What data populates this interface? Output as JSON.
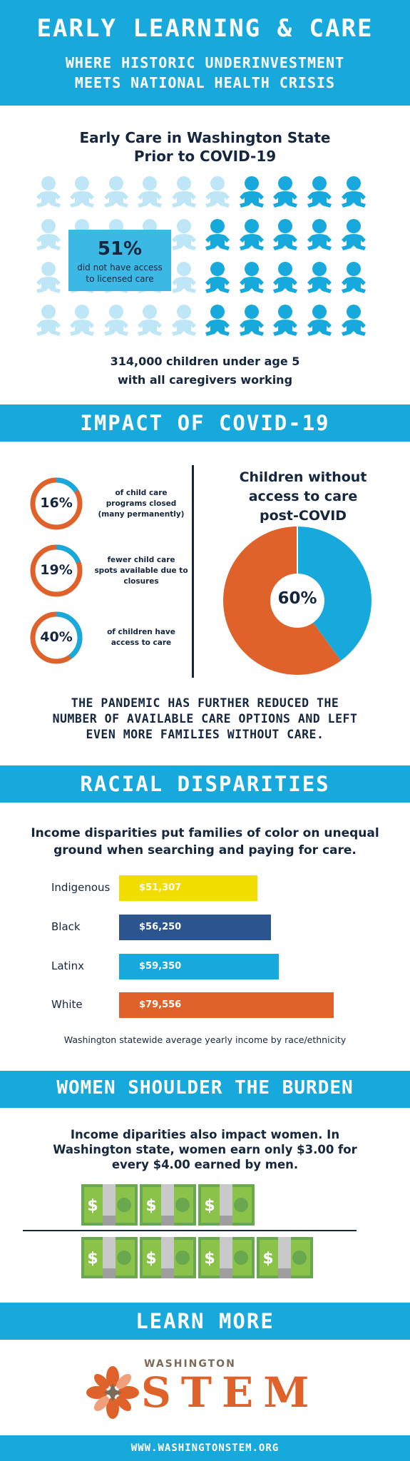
{
  "header": {
    "title": "EARLY LEARNING & CARE",
    "subtitle_line1": "WHERE HISTORIC UNDERINVESTMENT",
    "subtitle_line2": "MEETS NATIONAL HEALTH CRISIS"
  },
  "early_care": {
    "title_line1": "Early Care in Washington State",
    "title_line2": "Prior to COVID-19",
    "callout_percent": "51%",
    "callout_line1": "did not have access",
    "callout_line2": "to licensed care",
    "caption_line1": "314,000 children under age 5",
    "caption_line2": "with all caregivers working",
    "light_color": "#bfe6f6",
    "dark_color": "#18a9dc",
    "callout_color": "#3bb8e3",
    "icon": "baby-icon"
  },
  "covid": {
    "band": "IMPACT OF COVID-19",
    "stats": [
      {
        "percent": "16%",
        "fraction": 0.16,
        "line1": "of child care",
        "line2": "programs closed",
        "line3": "(many permanently)"
      },
      {
        "percent": "19%",
        "fraction": 0.19,
        "line1": "fewer child care",
        "line2": "spots available due to",
        "line3": "closures"
      },
      {
        "percent": "40%",
        "fraction": 0.4,
        "line1": "of children have",
        "line2": "access to care",
        "line3": ""
      }
    ],
    "pie_title_line1": "Children without",
    "pie_title_line2": "access to care",
    "pie_title_line3": "post-COVID",
    "pie_label": "60%",
    "pie_fraction": 0.6,
    "orange": "#e0622b",
    "blue": "#18a9dc",
    "statement_line1": "THE PANDEMIC HAS FURTHER REDUCED THE",
    "statement_line2": "NUMBER OF AVAILABLE CARE OPTIONS AND LEFT",
    "statement_line3": "EVEN MORE FAMILIES WITHOUT CARE."
  },
  "racial": {
    "band": "RACIAL DISPARITIES",
    "heading_line1": "Income disparities put families of color on unequal",
    "heading_line2": "ground when searching and paying for care.",
    "bars": [
      {
        "label": "Indigenous",
        "value": 51307,
        "display": "$51,307",
        "color": "#f2dd00"
      },
      {
        "label": "Black",
        "value": 56250,
        "display": "$56,250",
        "color": "#2c5590"
      },
      {
        "label": "Latinx",
        "value": 59350,
        "display": "$59,350",
        "color": "#18a9dc"
      },
      {
        "label": "White",
        "value": 79556,
        "display": "$79,556",
        "color": "#e0622b"
      }
    ],
    "caption": "Washington statewide average yearly income by race/ethnicity"
  },
  "women": {
    "band": "WOMEN SHOULDER THE BURDEN",
    "heading_line1": "Income diparities also impact women. In",
    "heading_line2": "Washington state, women earn only $3.00 for",
    "heading_line3": "every $4.00 earned by men.",
    "women_bills": 3,
    "men_bills": 4,
    "bill_icon": "dollar-bill-icon",
    "bill_symbol": "$"
  },
  "learn_more": {
    "band": "LEARN MORE",
    "logo_small": "WASHINGTON",
    "logo_big": "STEM",
    "url": "WWW.WASHINGTONSTEM.ORG"
  }
}
